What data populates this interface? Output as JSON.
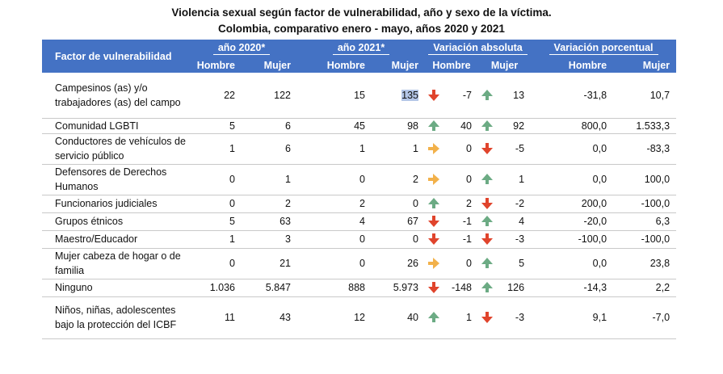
{
  "title_line1": "Violencia sexual según factor de vulnerabilidad, año y sexo de la víctima.",
  "title_line2": "Colombia, comparativo enero - mayo, años 2020 y 2021",
  "headers": {
    "factor": "Factor de vulnerabilidad",
    "groups": [
      "año 2020*",
      "año 2021*",
      "Variación absoluta",
      "Variación porcentual"
    ],
    "hombre": "Hombre",
    "mujer": "Mujer"
  },
  "colors": {
    "header_bg": "#4472c4",
    "up": "#6cab84",
    "down": "#e0442c",
    "equal": "#f2b14a",
    "highlight": "#b4c6e7"
  },
  "rows": [
    {
      "factor": "Campesinos (as) y/o trabajadores (as) del campo",
      "h2020": "22",
      "m2020": "122",
      "h2021": "15",
      "m2021": "135",
      "dir_h": "down",
      "var_abs_h": "-7",
      "dir_m": "up",
      "var_abs_m": "13",
      "var_pct_h": "-31,8",
      "var_pct_m": "10,7"
    },
    {
      "factor": "Comunidad LGBTI",
      "h2020": "5",
      "m2020": "6",
      "h2021": "45",
      "m2021": "98",
      "dir_h": "up",
      "var_abs_h": "40",
      "dir_m": "up",
      "var_abs_m": "92",
      "var_pct_h": "800,0",
      "var_pct_m": "1.533,3"
    },
    {
      "factor": "Conductores de vehículos de servicio público",
      "h2020": "1",
      "m2020": "6",
      "h2021": "1",
      "m2021": "1",
      "dir_h": "right",
      "var_abs_h": "0",
      "dir_m": "down",
      "var_abs_m": "-5",
      "var_pct_h": "0,0",
      "var_pct_m": "-83,3"
    },
    {
      "factor": "Defensores de Derechos Humanos",
      "h2020": "0",
      "m2020": "1",
      "h2021": "0",
      "m2021": "2",
      "dir_h": "right",
      "var_abs_h": "0",
      "dir_m": "up",
      "var_abs_m": "1",
      "var_pct_h": "0,0",
      "var_pct_m": "100,0"
    },
    {
      "factor": "Funcionarios judiciales",
      "h2020": "0",
      "m2020": "2",
      "h2021": "2",
      "m2021": "0",
      "dir_h": "up",
      "var_abs_h": "2",
      "dir_m": "down",
      "var_abs_m": "-2",
      "var_pct_h": "200,0",
      "var_pct_m": "-100,0"
    },
    {
      "factor": "Grupos étnicos",
      "h2020": "5",
      "m2020": "63",
      "h2021": "4",
      "m2021": "67",
      "dir_h": "down",
      "var_abs_h": "-1",
      "dir_m": "up",
      "var_abs_m": "4",
      "var_pct_h": "-20,0",
      "var_pct_m": "6,3"
    },
    {
      "factor": "Maestro/Educador",
      "h2020": "1",
      "m2020": "3",
      "h2021": "0",
      "m2021": "0",
      "dir_h": "down",
      "var_abs_h": "-1",
      "dir_m": "down",
      "var_abs_m": "-3",
      "var_pct_h": "-100,0",
      "var_pct_m": "-100,0"
    },
    {
      "factor": "Mujer cabeza de hogar o de familia",
      "h2020": "0",
      "m2020": "21",
      "h2021": "0",
      "m2021": "26",
      "dir_h": "right",
      "var_abs_h": "0",
      "dir_m": "up",
      "var_abs_m": "5",
      "var_pct_h": "0,0",
      "var_pct_m": "23,8"
    },
    {
      "factor": "Ninguno",
      "h2020": "1.036",
      "m2020": "5.847",
      "h2021": "888",
      "m2021": "5.973",
      "dir_h": "down",
      "var_abs_h": "-148",
      "dir_m": "up",
      "var_abs_m": "126",
      "var_pct_h": "-14,3",
      "var_pct_m": "2,2"
    },
    {
      "factor": "Niños, niñas, adolescentes bajo la protección del ICBF",
      "h2020": "11",
      "m2020": "43",
      "h2021": "12",
      "m2021": "40",
      "dir_h": "up",
      "var_abs_h": "1",
      "dir_m": "down",
      "var_abs_m": "-3",
      "var_pct_h": "9,1",
      "var_pct_m": "-7,0"
    }
  ]
}
